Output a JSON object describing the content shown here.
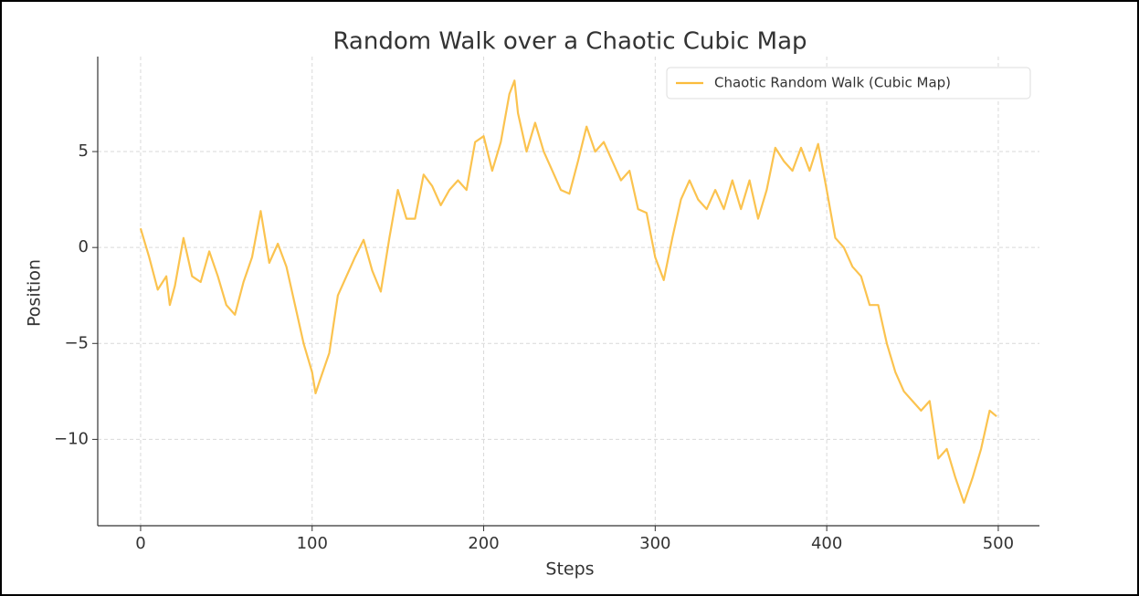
{
  "chart_data": {
    "type": "line",
    "title": "Random Walk over a Chaotic Cubic Map",
    "xlabel": "Steps",
    "ylabel": "Position",
    "x": [
      0,
      5,
      10,
      15,
      17,
      20,
      25,
      30,
      35,
      40,
      45,
      50,
      55,
      60,
      65,
      70,
      75,
      80,
      85,
      90,
      95,
      100,
      102,
      105,
      110,
      115,
      120,
      125,
      130,
      135,
      140,
      145,
      150,
      155,
      160,
      165,
      170,
      175,
      180,
      185,
      190,
      195,
      200,
      205,
      210,
      215,
      218,
      220,
      225,
      230,
      235,
      240,
      245,
      250,
      255,
      260,
      265,
      270,
      275,
      280,
      285,
      290,
      295,
      300,
      305,
      310,
      315,
      320,
      325,
      330,
      335,
      340,
      345,
      350,
      355,
      360,
      365,
      370,
      375,
      380,
      385,
      390,
      395,
      400,
      405,
      410,
      415,
      420,
      425,
      430,
      435,
      440,
      445,
      450,
      455,
      460,
      465,
      470,
      475,
      480,
      485,
      490,
      495,
      499
    ],
    "series": [
      {
        "name": "Chaotic Random Walk (Cubic Map)",
        "color": "#fbbc3c",
        "values": [
          1.0,
          -0.5,
          -2.2,
          -1.5,
          -3.0,
          -2.0,
          0.5,
          -1.5,
          -1.8,
          -0.2,
          -1.5,
          -3.0,
          -3.5,
          -1.8,
          -0.5,
          1.9,
          -0.8,
          0.2,
          -1.0,
          -3.0,
          -5.0,
          -6.5,
          -7.6,
          -6.8,
          -5.5,
          -2.5,
          -1.5,
          -0.5,
          0.4,
          -1.2,
          -2.3,
          0.5,
          3.0,
          1.5,
          1.5,
          3.8,
          3.2,
          2.2,
          3.0,
          3.5,
          3.0,
          5.5,
          5.8,
          4.0,
          5.5,
          8.0,
          8.7,
          7.0,
          5.0,
          6.5,
          5.0,
          4.0,
          3.0,
          2.8,
          4.5,
          6.3,
          5.0,
          5.5,
          4.5,
          3.5,
          4.0,
          2.0,
          1.8,
          -0.5,
          -1.7,
          0.5,
          2.5,
          3.5,
          2.5,
          2.0,
          3.0,
          2.0,
          3.5,
          2.0,
          3.5,
          1.5,
          3.0,
          5.2,
          4.5,
          4.0,
          5.2,
          4.0,
          5.4,
          3.0,
          0.5,
          0.0,
          -1.0,
          -1.5,
          -3.0,
          -3.0,
          -5.0,
          -6.5,
          -7.5,
          -8.0,
          -8.5,
          -8.0,
          -11.0,
          -10.5,
          -12.0,
          -13.3,
          -12.0,
          -10.5,
          -8.5,
          -8.8
        ]
      }
    ],
    "xlim": [
      -25,
      524
    ],
    "ylim": [
      -14.5,
      9.95
    ],
    "xticks": [
      0,
      100,
      200,
      300,
      400,
      500
    ],
    "yticks": [
      {
        "value": -10,
        "label": "−10"
      },
      {
        "value": -5,
        "label": "−5"
      },
      0,
      5
    ],
    "grid": true,
    "legend": "upper right"
  }
}
